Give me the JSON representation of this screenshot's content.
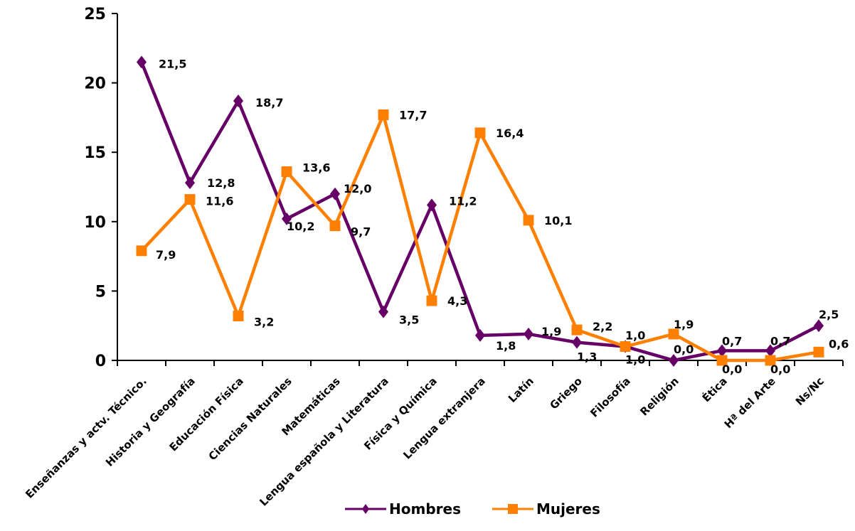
{
  "chart_data": {
    "type": "line",
    "categories": [
      "Enseñanzas y actv. Técnico.",
      "Historia y Geografía",
      "Educación Física",
      "Ciencias Naturales",
      "Matemáticas",
      "Lengua española y Literatura",
      "Física y Química",
      "Lengua extranjera",
      "Latín",
      "Griego",
      "Filosofía",
      "Religión",
      "Ética",
      "Hª del Arte",
      "Ns/Nc"
    ],
    "series": [
      {
        "name": "Hombres",
        "color": "#660066",
        "marker": "diamond",
        "values": [
          21.5,
          12.8,
          18.7,
          10.2,
          12.0,
          3.5,
          11.2,
          1.8,
          1.9,
          1.3,
          1.0,
          0.0,
          0.7,
          0.7,
          2.5
        ],
        "labels": [
          "21,5",
          "12,8",
          "18,7",
          "10,2",
          "12,0",
          "3,5",
          "11,2",
          "1,8",
          "1,9",
          "1,3",
          "1,0",
          "0,0",
          "0,7",
          "0,7",
          "2,5"
        ]
      },
      {
        "name": "Mujeres",
        "color": "#ff7f00",
        "marker": "square",
        "values": [
          7.9,
          11.6,
          3.2,
          13.6,
          9.7,
          17.7,
          4.3,
          16.4,
          10.1,
          2.2,
          1.0,
          1.9,
          0.0,
          0.0,
          0.6
        ],
        "labels": [
          "7,9",
          "11,6",
          "3,2",
          "13,6",
          "9,7",
          "17,7",
          "4,3",
          "16,4",
          "10,1",
          "2,2",
          "1,0",
          "1,9",
          "0,0",
          "0,0",
          "0,6"
        ]
      }
    ],
    "ylim": [
      0,
      25
    ],
    "yticks": [
      "0",
      "5",
      "10",
      "15",
      "20",
      "25"
    ],
    "grid": false,
    "legend_position": "bottom"
  }
}
